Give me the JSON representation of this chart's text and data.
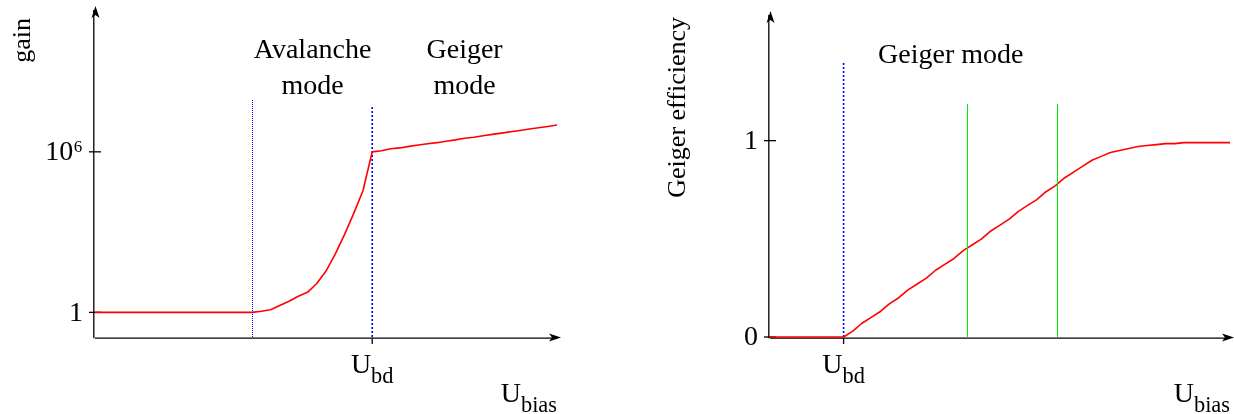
{
  "chart_data": [
    {
      "type": "line",
      "xlabel": "U$_{bias}$",
      "ylabel": "gain",
      "log": "y",
      "grid": false,
      "marker": "none",
      "categories": [
        null,
        null,
        null,
        null,
        null,
        null,
        null,
        null,
        null,
        null,
        null,
        null,
        null,
        null,
        null,
        null,
        null,
        null,
        null,
        null,
        null,
        null,
        null,
        null,
        null,
        null,
        null,
        null,
        null,
        null,
        "U$_{bd}$",
        null,
        null,
        null,
        null,
        null,
        null,
        null,
        null,
        null,
        null,
        null,
        null,
        null,
        null,
        null,
        null,
        null,
        null,
        null,
        null
      ],
      "ylim": [
        0.12,
        200000000000
      ],
      "yticks": [
        {
          "value": 1,
          "label": "1"
        },
        {
          "value": 1000000,
          "label": "10⁶"
        }
      ],
      "annotations": [
        "Avalanche\nmode",
        "Geiger\nmode"
      ],
      "ref_lines": [
        {
          "axis": "x",
          "value": "U$_{bd}$",
          "color": "#0000ff",
          "line_style": "dotted"
        }
      ],
      "series": [
        {
          "color": "#ff0000",
          "values": [
            1,
            1,
            1,
            1,
            1,
            1,
            1,
            1,
            1,
            1,
            1,
            1,
            1,
            1,
            1,
            1,
            1,
            1,
            1.1,
            1.25,
            1.8,
            2.6,
            4,
            5.6,
            12,
            35,
            150,
            800,
            5000,
            35000,
            1000000,
            1100000,
            1300000,
            1400000,
            1600000,
            1800000,
            2000000,
            2200000,
            2500000,
            2800000,
            3200000,
            3500000,
            4000000,
            4500000,
            5000000,
            5600000,
            6300000,
            7100000,
            7900000,
            8900000,
            10000000
          ]
        }
      ]
    },
    {
      "type": "line",
      "xlabel": "U$_{bias}$",
      "ylabel": "Geiger efficiency",
      "grid": false,
      "marker": "none",
      "categories": [
        null,
        null,
        null,
        null,
        null,
        null,
        null,
        null,
        "U$_{bd}$",
        null,
        null,
        null,
        null,
        null,
        null,
        null,
        null,
        null,
        null,
        null,
        null,
        null,
        null,
        null,
        null,
        null,
        null,
        null,
        null,
        null,
        null,
        null,
        null,
        null,
        null,
        null,
        null,
        null,
        null,
        null,
        null,
        null,
        null,
        null,
        null,
        null,
        null,
        null,
        null,
        null,
        null
      ],
      "ylim": [
        0,
        1.64
      ],
      "yticks": [
        0,
        1
      ],
      "annotations": [
        "Geiger mode"
      ],
      "ref_lines": [
        {
          "axis": "x",
          "value": "U$_{bd}$",
          "color": "#0000ff",
          "line_style": "dotted"
        }
      ],
      "series": [
        {
          "color": "#ff0000",
          "values": [
            0,
            0,
            0,
            0,
            0,
            0,
            0,
            0,
            0,
            0.03,
            0.07,
            0.1,
            0.13,
            0.17,
            0.2,
            0.24,
            0.27,
            0.3,
            0.34,
            0.37,
            0.4,
            0.44,
            0.47,
            0.5,
            0.54,
            0.57,
            0.6,
            0.64,
            0.67,
            0.7,
            0.74,
            0.77,
            0.81,
            0.84,
            0.87,
            0.9,
            0.92,
            0.94,
            0.95,
            0.96,
            0.97,
            0.975,
            0.98,
            0.985,
            0.985,
            0.99,
            0.99,
            0.99,
            0.99,
            0.99,
            0.99
          ]
        }
      ]
    }
  ]
}
